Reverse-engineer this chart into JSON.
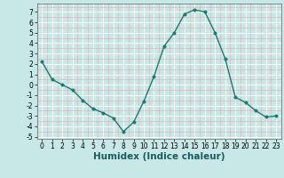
{
  "x": [
    0,
    1,
    2,
    3,
    4,
    5,
    6,
    7,
    8,
    9,
    10,
    11,
    12,
    13,
    14,
    15,
    16,
    17,
    18,
    19,
    20,
    21,
    22,
    23
  ],
  "y": [
    2.2,
    0.5,
    0.0,
    -0.5,
    -1.5,
    -2.3,
    -2.7,
    -3.2,
    -4.5,
    -3.6,
    -1.6,
    0.8,
    3.7,
    5.0,
    6.8,
    7.2,
    7.0,
    5.0,
    2.5,
    -1.2,
    -1.7,
    -2.5,
    -3.1,
    -3.0
  ],
  "line_color": "#1a7a6e",
  "marker_color": "#1a7a6e",
  "bg_color": "#c8e8e8",
  "grid_color_major": "#ffffff",
  "grid_color_minor": "#e8aaaa",
  "xlabel": "Humidex (Indice chaleur)",
  "ylim": [
    -5.2,
    7.8
  ],
  "xlim": [
    -0.5,
    23.5
  ],
  "yticks": [
    -5,
    -4,
    -3,
    -2,
    -1,
    0,
    1,
    2,
    3,
    4,
    5,
    6,
    7
  ],
  "xticks": [
    0,
    1,
    2,
    3,
    4,
    5,
    6,
    7,
    8,
    9,
    10,
    11,
    12,
    13,
    14,
    15,
    16,
    17,
    18,
    19,
    20,
    21,
    22,
    23
  ],
  "tick_label_fontsize": 5.5,
  "xlabel_fontsize": 7.5,
  "line_width": 1.0,
  "marker_size": 2.5
}
